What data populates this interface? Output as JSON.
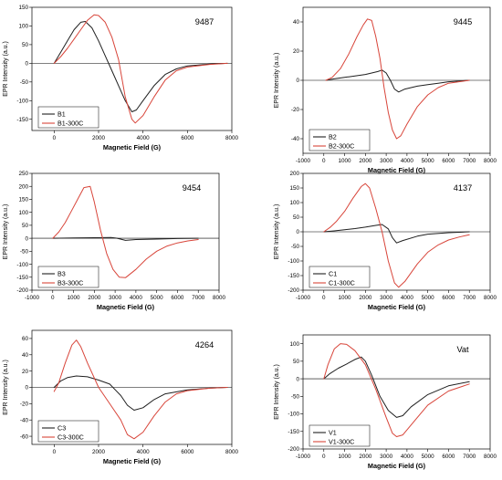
{
  "colors": {
    "sample": "#1f1f1f",
    "treated": "#d8453a"
  },
  "chart_data": [
    {
      "type": "line",
      "title": "9487",
      "xlabel": "Magnetic Field  (G)",
      "ylabel": "EPR Intensity  (a.u.)",
      "xlim": [
        -1000,
        8000
      ],
      "ylim": [
        -180,
        150
      ],
      "xticks": [
        0,
        2000,
        4000,
        6000,
        8000
      ],
      "yticks": [
        -150,
        -100,
        -50,
        0,
        50,
        100,
        150
      ],
      "legend": "bottom-left",
      "series": [
        {
          "name": "B1",
          "color": "#1f1f1f",
          "points": [
            [
              0,
              0
            ],
            [
              300,
              30
            ],
            [
              600,
              60
            ],
            [
              900,
              90
            ],
            [
              1200,
              110
            ],
            [
              1400,
              112
            ],
            [
              1700,
              95
            ],
            [
              2000,
              60
            ],
            [
              2300,
              20
            ],
            [
              2600,
              -20
            ],
            [
              2900,
              -60
            ],
            [
              3200,
              -100
            ],
            [
              3500,
              -130
            ],
            [
              3700,
              -125
            ],
            [
              4000,
              -100
            ],
            [
              4500,
              -60
            ],
            [
              5000,
              -30
            ],
            [
              5500,
              -15
            ],
            [
              6000,
              -7
            ],
            [
              7000,
              -2
            ],
            [
              7800,
              0
            ]
          ]
        },
        {
          "name": "B1-300C",
          "color": "#d8453a",
          "points": [
            [
              0,
              0
            ],
            [
              300,
              18
            ],
            [
              600,
              40
            ],
            [
              900,
              65
            ],
            [
              1200,
              90
            ],
            [
              1500,
              115
            ],
            [
              1800,
              130
            ],
            [
              2000,
              128
            ],
            [
              2300,
              110
            ],
            [
              2600,
              70
            ],
            [
              2900,
              10
            ],
            [
              3200,
              -90
            ],
            [
              3500,
              -150
            ],
            [
              3650,
              -160
            ],
            [
              4000,
              -140
            ],
            [
              4500,
              -90
            ],
            [
              5000,
              -45
            ],
            [
              5500,
              -20
            ],
            [
              6000,
              -10
            ],
            [
              7000,
              -3
            ],
            [
              7800,
              0
            ]
          ]
        }
      ]
    },
    {
      "type": "line",
      "title": "9445",
      "xlabel": "Magnetic Field  (G)",
      "ylabel": "EPR Intensity  (a.u.)",
      "xlim": [
        -1000,
        8000
      ],
      "ylim": [
        -50,
        50
      ],
      "xticks": [
        -1000,
        0,
        1000,
        2000,
        3000,
        4000,
        5000,
        6000,
        7000,
        8000
      ],
      "yticks": [
        -40,
        -20,
        0,
        20,
        40
      ],
      "legend": "bottom-left",
      "series": [
        {
          "name": "B2",
          "color": "#1f1f1f",
          "points": [
            [
              100,
              0
            ],
            [
              500,
              1
            ],
            [
              1000,
              2
            ],
            [
              1500,
              3
            ],
            [
              2000,
              4
            ],
            [
              2300,
              5
            ],
            [
              2600,
              6
            ],
            [
              2800,
              7
            ],
            [
              3000,
              5
            ],
            [
              3200,
              0
            ],
            [
              3400,
              -6
            ],
            [
              3600,
              -8
            ],
            [
              3900,
              -6
            ],
            [
              4500,
              -4
            ],
            [
              5000,
              -3
            ],
            [
              5500,
              -2
            ],
            [
              6000,
              -1
            ],
            [
              7000,
              0
            ]
          ]
        },
        {
          "name": "B2-300C",
          "color": "#d8453a",
          "points": [
            [
              100,
              0
            ],
            [
              400,
              2
            ],
            [
              800,
              8
            ],
            [
              1200,
              18
            ],
            [
              1600,
              30
            ],
            [
              1900,
              38
            ],
            [
              2100,
              42
            ],
            [
              2300,
              41
            ],
            [
              2500,
              30
            ],
            [
              2700,
              15
            ],
            [
              2900,
              -5
            ],
            [
              3100,
              -22
            ],
            [
              3300,
              -34
            ],
            [
              3500,
              -40
            ],
            [
              3700,
              -38
            ],
            [
              4000,
              -30
            ],
            [
              4500,
              -18
            ],
            [
              5000,
              -10
            ],
            [
              5500,
              -5
            ],
            [
              6000,
              -2
            ],
            [
              6500,
              -1
            ],
            [
              7000,
              0
            ]
          ]
        }
      ]
    },
    {
      "type": "line",
      "title": "9454",
      "xlabel": "Magnetic Field  (G)",
      "ylabel": "EPR Intensity  (a.u.)",
      "xlim": [
        -1000,
        8000
      ],
      "ylim": [
        -200,
        250
      ],
      "xticks": [
        -1000,
        0,
        1000,
        2000,
        3000,
        4000,
        5000,
        6000,
        7000,
        8000
      ],
      "yticks": [
        -200,
        -150,
        -100,
        -50,
        0,
        50,
        100,
        150,
        200,
        250
      ],
      "legend": "bottom-left",
      "series": [
        {
          "name": "B3",
          "color": "#1f1f1f",
          "points": [
            [
              0,
              0
            ],
            [
              1000,
              1
            ],
            [
              2000,
              2
            ],
            [
              2800,
              3
            ],
            [
              3100,
              0
            ],
            [
              3500,
              -8
            ],
            [
              4000,
              -5
            ],
            [
              5000,
              -3
            ],
            [
              6000,
              -1
            ],
            [
              7000,
              0
            ]
          ]
        },
        {
          "name": "B3-300C",
          "color": "#d8453a",
          "points": [
            [
              0,
              0
            ],
            [
              300,
              25
            ],
            [
              600,
              60
            ],
            [
              900,
              105
            ],
            [
              1200,
              150
            ],
            [
              1500,
              195
            ],
            [
              1800,
              200
            ],
            [
              2000,
              140
            ],
            [
              2300,
              30
            ],
            [
              2600,
              -60
            ],
            [
              2900,
              -120
            ],
            [
              3200,
              -150
            ],
            [
              3500,
              -152
            ],
            [
              4000,
              -120
            ],
            [
              4500,
              -80
            ],
            [
              5000,
              -50
            ],
            [
              5500,
              -30
            ],
            [
              6000,
              -18
            ],
            [
              6500,
              -10
            ],
            [
              7000,
              -5
            ]
          ]
        }
      ]
    },
    {
      "type": "line",
      "title": "4137",
      "xlabel": "Magnetic Field  (G)",
      "ylabel": "EPR Intensity  (a.u.)",
      "xlim": [
        -1000,
        8000
      ],
      "ylim": [
        -200,
        200
      ],
      "xticks": [
        -1000,
        0,
        1000,
        2000,
        3000,
        4000,
        5000,
        6000,
        7000,
        8000
      ],
      "yticks": [
        -200,
        -150,
        -100,
        -50,
        0,
        50,
        100,
        150,
        200
      ],
      "legend": "bottom-left",
      "series": [
        {
          "name": "C1",
          "color": "#1f1f1f",
          "points": [
            [
              0,
              0
            ],
            [
              500,
              3
            ],
            [
              1000,
              7
            ],
            [
              1500,
              11
            ],
            [
              2000,
              16
            ],
            [
              2500,
              22
            ],
            [
              2800,
              25
            ],
            [
              3100,
              10
            ],
            [
              3300,
              -20
            ],
            [
              3500,
              -38
            ],
            [
              3800,
              -30
            ],
            [
              4500,
              -15
            ],
            [
              5000,
              -8
            ],
            [
              6000,
              -3
            ],
            [
              7000,
              0
            ]
          ]
        },
        {
          "name": "C1-300C",
          "color": "#d8453a",
          "points": [
            [
              0,
              0
            ],
            [
              300,
              15
            ],
            [
              600,
              35
            ],
            [
              1000,
              70
            ],
            [
              1400,
              115
            ],
            [
              1800,
              155
            ],
            [
              2000,
              165
            ],
            [
              2200,
              150
            ],
            [
              2500,
              80
            ],
            [
              2800,
              0
            ],
            [
              3100,
              -100
            ],
            [
              3400,
              -175
            ],
            [
              3600,
              -190
            ],
            [
              3900,
              -170
            ],
            [
              4500,
              -110
            ],
            [
              5000,
              -70
            ],
            [
              5500,
              -45
            ],
            [
              6000,
              -28
            ],
            [
              6500,
              -18
            ],
            [
              7000,
              -10
            ]
          ]
        }
      ]
    },
    {
      "type": "line",
      "title": "4264",
      "xlabel": "Magnetic Field  (G)",
      "ylabel": "EPR Intensity  (a.u.)",
      "xlim": [
        -1000,
        8000
      ],
      "ylim": [
        -70,
        70
      ],
      "xticks": [
        0,
        2000,
        4000,
        6000,
        8000
      ],
      "yticks": [
        -60,
        -40,
        -20,
        0,
        20,
        40,
        60
      ],
      "legend": "bottom-left",
      "series": [
        {
          "name": "C3",
          "color": "#1f1f1f",
          "points": [
            [
              0,
              0
            ],
            [
              300,
              8
            ],
            [
              600,
              12
            ],
            [
              1000,
              14
            ],
            [
              1500,
              13
            ],
            [
              2000,
              9
            ],
            [
              2500,
              4
            ],
            [
              3000,
              -10
            ],
            [
              3300,
              -22
            ],
            [
              3600,
              -28
            ],
            [
              4000,
              -25
            ],
            [
              4500,
              -15
            ],
            [
              5000,
              -8
            ],
            [
              6000,
              -3
            ],
            [
              7000,
              -1
            ],
            [
              7800,
              0
            ]
          ]
        },
        {
          "name": "C3-300C",
          "color": "#d8453a",
          "points": [
            [
              0,
              -5
            ],
            [
              200,
              5
            ],
            [
              500,
              30
            ],
            [
              800,
              52
            ],
            [
              1000,
              58
            ],
            [
              1200,
              50
            ],
            [
              1500,
              30
            ],
            [
              2000,
              0
            ],
            [
              2500,
              -20
            ],
            [
              3000,
              -40
            ],
            [
              3300,
              -58
            ],
            [
              3600,
              -63
            ],
            [
              4000,
              -55
            ],
            [
              4500,
              -35
            ],
            [
              5000,
              -18
            ],
            [
              5500,
              -8
            ],
            [
              6000,
              -4
            ],
            [
              7000,
              -1
            ],
            [
              7800,
              0
            ]
          ]
        }
      ]
    },
    {
      "type": "line",
      "title": "Vat",
      "xlabel": "Magnetic Field  (G)",
      "ylabel": "EPR Intensity  (a.u.)",
      "xlim": [
        -1000,
        8000
      ],
      "ylim": [
        -200,
        125
      ],
      "xticks": [
        -1000,
        0,
        1000,
        2000,
        3000,
        4000,
        5000,
        6000,
        7000,
        8000
      ],
      "yticks": [
        -200,
        -150,
        -100,
        -50,
        0,
        50,
        100
      ],
      "legend": "bottom-left",
      "series": [
        {
          "name": "V1",
          "color": "#1f1f1f",
          "points": [
            [
              0,
              0
            ],
            [
              300,
              15
            ],
            [
              700,
              30
            ],
            [
              1100,
              42
            ],
            [
              1500,
              55
            ],
            [
              1800,
              62
            ],
            [
              2000,
              50
            ],
            [
              2300,
              10
            ],
            [
              2700,
              -50
            ],
            [
              3100,
              -90
            ],
            [
              3500,
              -110
            ],
            [
              3800,
              -105
            ],
            [
              4200,
              -80
            ],
            [
              5000,
              -45
            ],
            [
              6000,
              -20
            ],
            [
              7000,
              -8
            ]
          ]
        },
        {
          "name": "V1-300C",
          "color": "#d8453a",
          "points": [
            [
              0,
              0
            ],
            [
              200,
              40
            ],
            [
              500,
              85
            ],
            [
              800,
              100
            ],
            [
              1100,
              98
            ],
            [
              1500,
              80
            ],
            [
              2000,
              40
            ],
            [
              2500,
              -30
            ],
            [
              3000,
              -110
            ],
            [
              3300,
              -155
            ],
            [
              3500,
              -165
            ],
            [
              3800,
              -160
            ],
            [
              4500,
              -110
            ],
            [
              5000,
              -75
            ],
            [
              6000,
              -35
            ],
            [
              7000,
              -15
            ]
          ]
        }
      ]
    }
  ]
}
